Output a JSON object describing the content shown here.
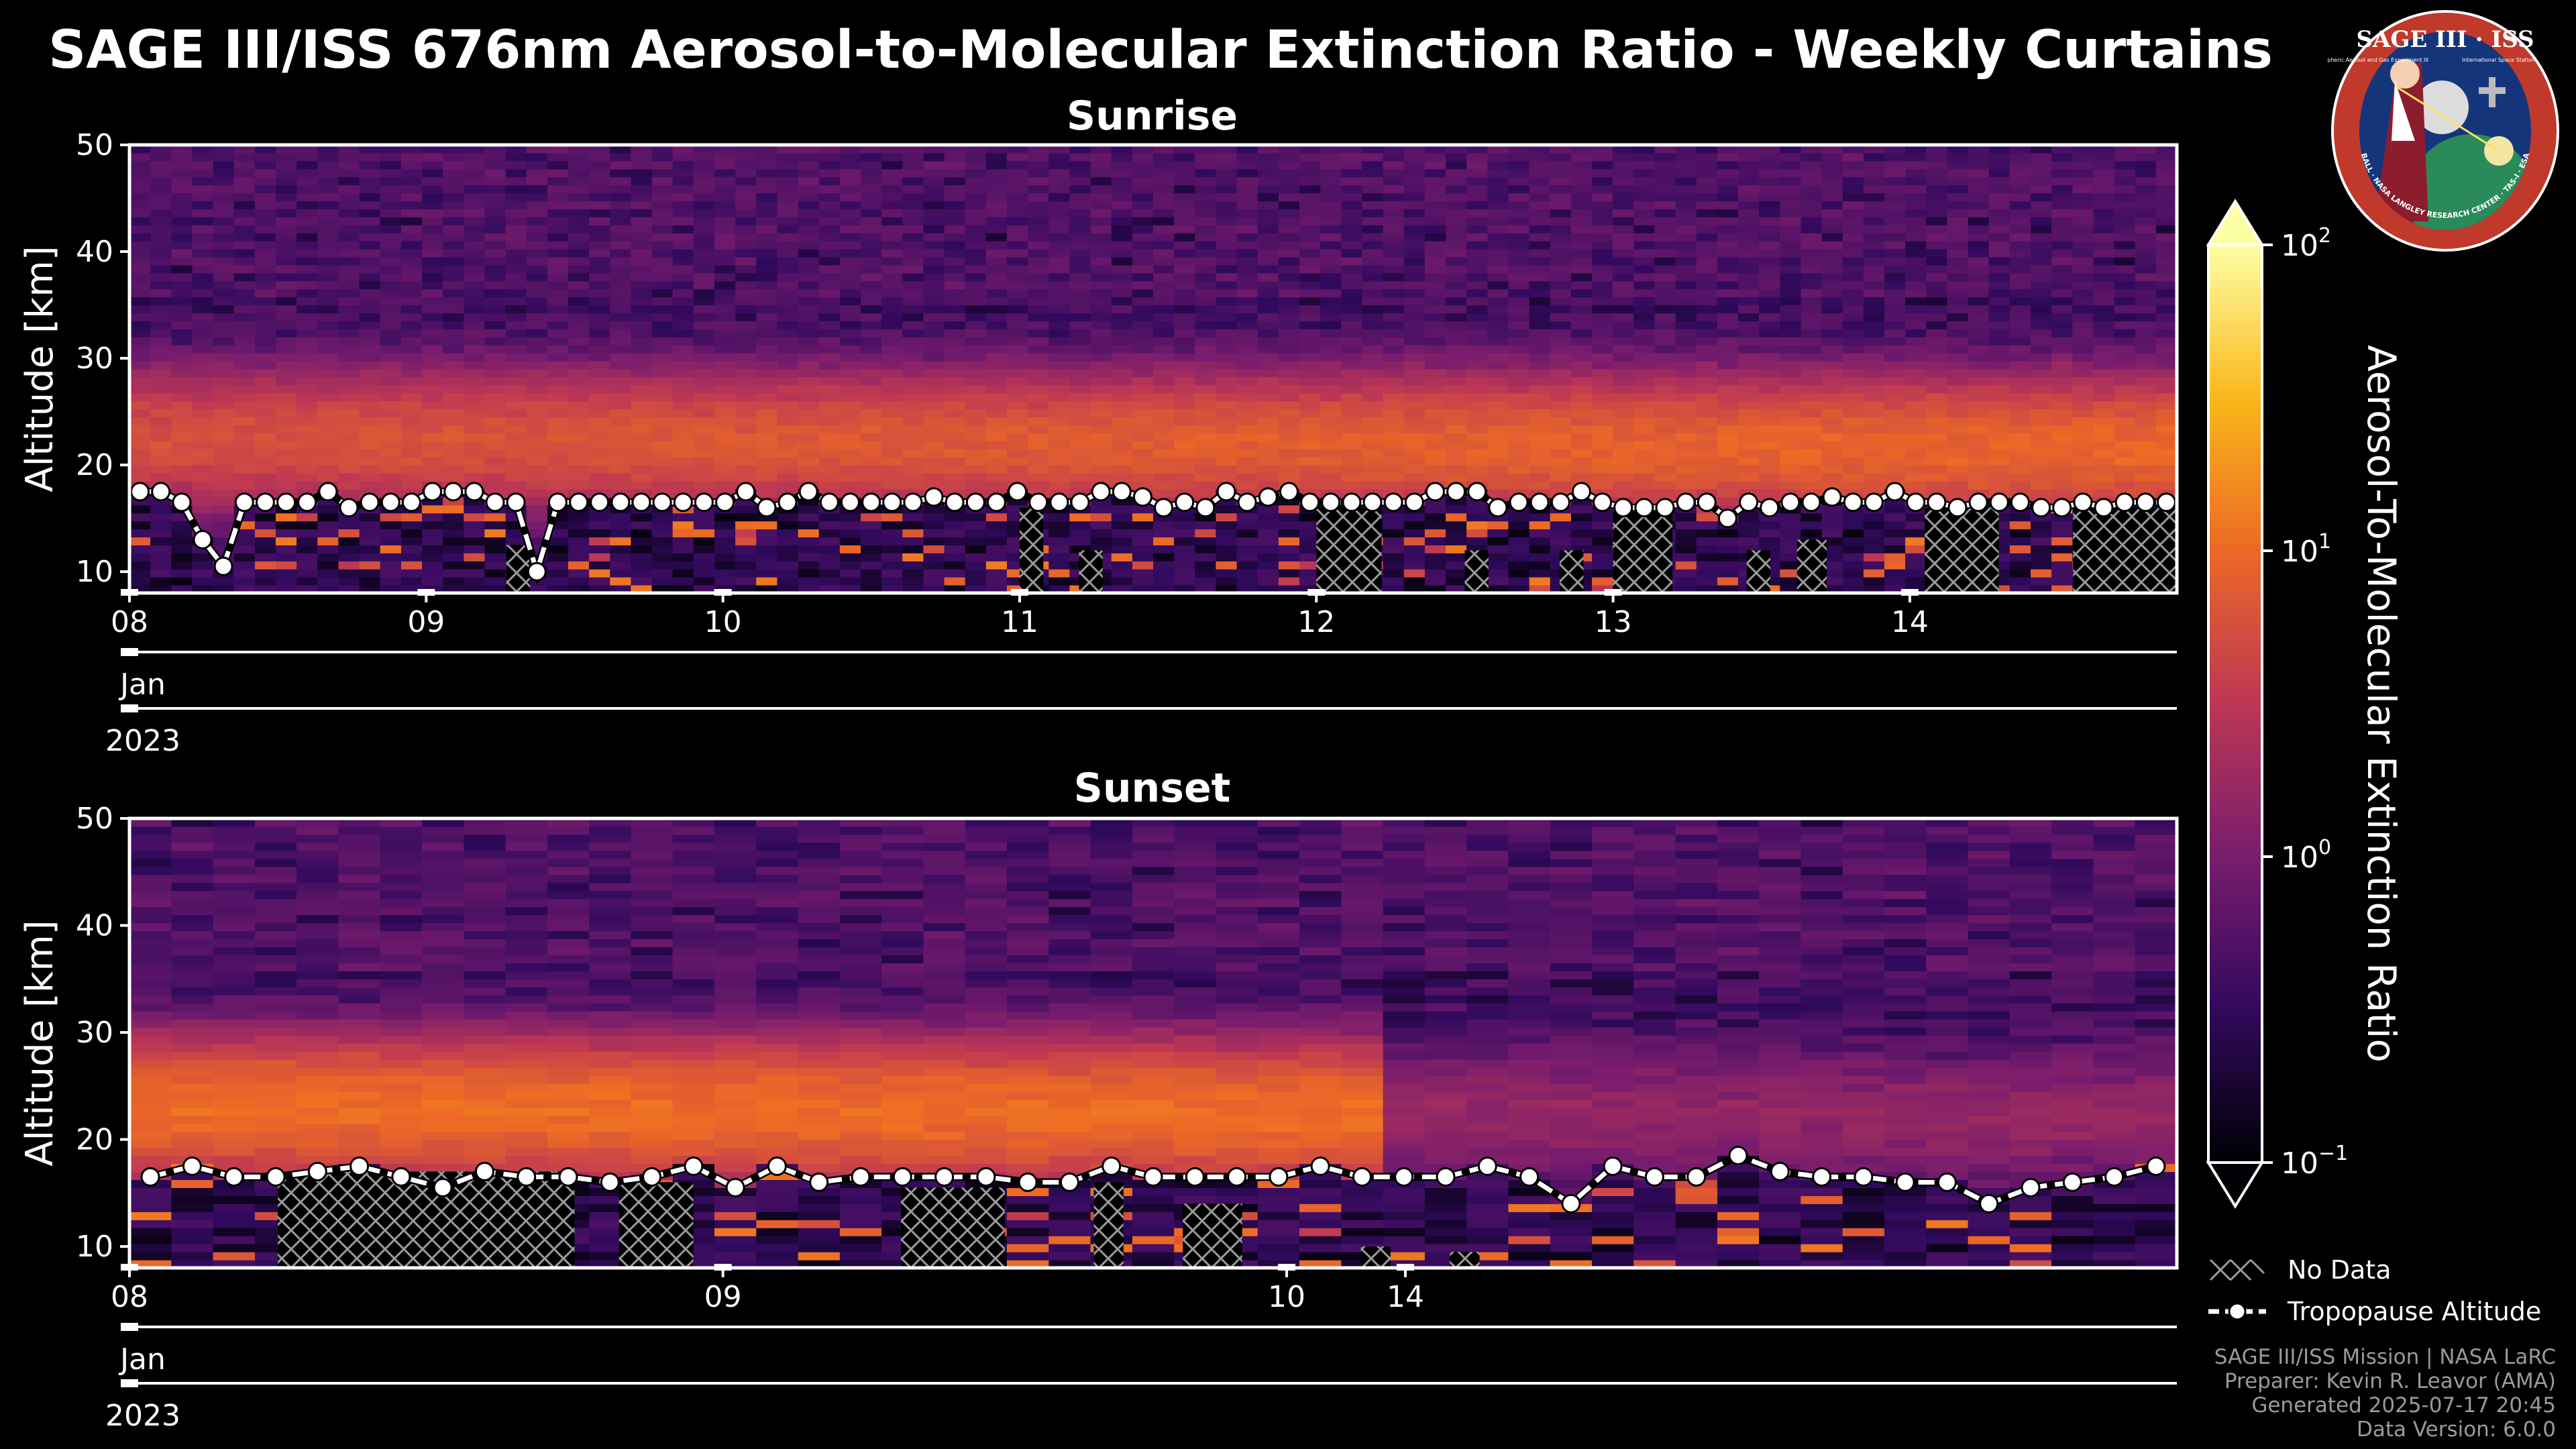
{
  "title": "SAGE III/ISS 676nm Aerosol-to-Molecular Extinction Ratio - Weekly Curtains",
  "logo": {
    "text": "SAGE III · ISS",
    "ring_text": "BALL · NASA LANGLEY RESEARCH CENTER · TAS-I · ESA",
    "subtitle_left": "Stratospheric Aerosol and Gas Experiment III",
    "subtitle_right": "International Space Station"
  },
  "colors": {
    "background": "#000000",
    "tropopause_line": "#ffffff",
    "no_data_hatch": "#9a9a9a",
    "colormap": [
      "#000004",
      "#320a5e",
      "#781c6d",
      "#bc3754",
      "#ed6925",
      "#fbb61a",
      "#fcffa4"
    ]
  },
  "colorbar": {
    "label": "Aerosol-To-Molecular Extinction Ratio",
    "scale": "log",
    "range": [
      0.1,
      100
    ],
    "extend": "both",
    "ticks": [
      {
        "value": 0.1,
        "base": "10",
        "exp": "−1"
      },
      {
        "value": 1,
        "base": "10",
        "exp": "0"
      },
      {
        "value": 10,
        "base": "10",
        "exp": "1"
      },
      {
        "value": 100,
        "base": "10",
        "exp": "2"
      }
    ]
  },
  "legend": {
    "placement": "lower-right",
    "no_data": "No Data",
    "tropopause": "Tropopause Altitude"
  },
  "credits": {
    "line1": "SAGE III/ISS Mission | NASA LaRC",
    "line2": "Preparer: Kevin R. Leavor (AMA)",
    "line3": "Generated 2025-07-17 20:45",
    "line4": "Data Version: 6.0.0"
  },
  "chart_data": [
    {
      "type": "heatmap",
      "title": "Sunrise",
      "ylabel": "Altitude [km]",
      "ylim": [
        8,
        50
      ],
      "yticks": [
        10,
        20,
        30,
        40,
        50
      ],
      "x_start": 0.0,
      "x_end": 6.9,
      "xticks": [
        {
          "value": 0,
          "label": "08"
        },
        {
          "value": 1,
          "label": "09"
        },
        {
          "value": 2,
          "label": "10"
        },
        {
          "value": 3,
          "label": "11"
        },
        {
          "value": 4,
          "label": "12"
        },
        {
          "value": 5,
          "label": "13"
        },
        {
          "value": 6,
          "label": "14"
        }
      ],
      "month_label": "Jan",
      "year_label": "2023",
      "n_profiles": 98,
      "aerosol_layer": {
        "peak_altitude_start": 22.5,
        "peak_altitude_end": 21.5,
        "peak_ratio_start": 5,
        "peak_ratio_end": 9
      },
      "tropopause_altitude": [
        17.5,
        17.5,
        16.5,
        13.0,
        10.5,
        16.5,
        16.5,
        16.5,
        16.5,
        17.5,
        16.0,
        16.5,
        16.5,
        16.5,
        17.5,
        17.5,
        17.5,
        16.5,
        16.5,
        10.0,
        16.5,
        16.5,
        16.5,
        16.5,
        16.5,
        16.5,
        16.5,
        16.5,
        16.5,
        17.5,
        16.0,
        16.5,
        17.5,
        16.5,
        16.5,
        16.5,
        16.5,
        16.5,
        17.0,
        16.5,
        16.5,
        16.5,
        17.5,
        16.5,
        16.5,
        16.5,
        17.5,
        17.5,
        17.0,
        16.0,
        16.5,
        16.0,
        17.5,
        16.5,
        17.0,
        17.5,
        16.5,
        16.5,
        16.5,
        16.5,
        16.5,
        16.5,
        17.5,
        17.5,
        17.5,
        16.0,
        16.5,
        16.5,
        16.5,
        17.5,
        16.5,
        16.0,
        16.0,
        16.0,
        16.5,
        16.5,
        15.0,
        16.5,
        16.0,
        16.5,
        16.5,
        17.0,
        16.5,
        16.5,
        17.5,
        16.5,
        16.5,
        16.0,
        16.5,
        16.5,
        16.5,
        16.0,
        16.0,
        16.5,
        16.0,
        16.5,
        16.5,
        16.5
      ],
      "no_data_regions": [
        [
          1.27,
          1.35,
          8,
          12.5
        ],
        [
          3.0,
          3.08,
          8,
          16
        ],
        [
          3.2,
          3.28,
          8,
          12
        ],
        [
          4.0,
          4.22,
          8,
          16
        ],
        [
          4.5,
          4.58,
          8,
          12
        ],
        [
          4.82,
          4.9,
          8,
          12
        ],
        [
          5.0,
          5.2,
          8,
          16
        ],
        [
          5.45,
          5.53,
          8,
          12
        ],
        [
          5.62,
          5.72,
          8,
          13
        ],
        [
          6.05,
          6.3,
          8,
          16
        ],
        [
          6.55,
          6.78,
          8,
          16
        ],
        [
          6.72,
          6.9,
          8,
          16
        ]
      ]
    },
    {
      "type": "heatmap",
      "title": "Sunset",
      "ylabel": "Altitude [km]",
      "ylim": [
        8,
        50
      ],
      "yticks": [
        10,
        20,
        30,
        40,
        50
      ],
      "x_start": 0.0,
      "x_end": 6.9,
      "xticks": [
        {
          "value": 0.0,
          "label": "08"
        },
        {
          "value": 2.0,
          "label": "09"
        },
        {
          "value": 3.9,
          "label": "10"
        },
        {
          "value": 4.3,
          "label": "14"
        }
      ],
      "month_label": "Jan",
      "year_label": "2023",
      "n_profiles": 49,
      "aerosol_layer": {
        "peak_altitude_start": 23.0,
        "peak_altitude_end": 22.0,
        "peak_ratio_start": 10,
        "peak_ratio_end": 1.2,
        "shift_at": 4.3
      },
      "tropopause_altitude": [
        16.5,
        17.5,
        16.5,
        16.5,
        17.0,
        17.5,
        16.5,
        15.5,
        17.0,
        16.5,
        16.5,
        16.0,
        16.5,
        17.5,
        15.5,
        17.5,
        16.0,
        16.5,
        16.5,
        16.5,
        16.5,
        16.0,
        16.0,
        17.5,
        16.5,
        16.5,
        16.5,
        16.5,
        17.5,
        16.5,
        16.5,
        16.5,
        17.5,
        16.5,
        14.0,
        17.5,
        16.5,
        16.5,
        18.5,
        17.0,
        16.5,
        16.5,
        16.0,
        16.0,
        14.0,
        15.5,
        16.0,
        16.5,
        17.5
      ],
      "no_data_regions": [
        [
          0.5,
          1.5,
          8,
          17.0
        ],
        [
          1.0,
          1.5,
          8,
          16.5
        ],
        [
          1.65,
          1.9,
          8,
          16.0
        ],
        [
          2.6,
          2.95,
          8,
          15.5
        ],
        [
          3.25,
          3.35,
          8,
          16.0
        ],
        [
          3.55,
          3.75,
          8,
          14.0
        ],
        [
          4.15,
          4.25,
          8,
          10.0
        ],
        [
          4.45,
          4.55,
          8,
          9.5
        ]
      ]
    }
  ]
}
